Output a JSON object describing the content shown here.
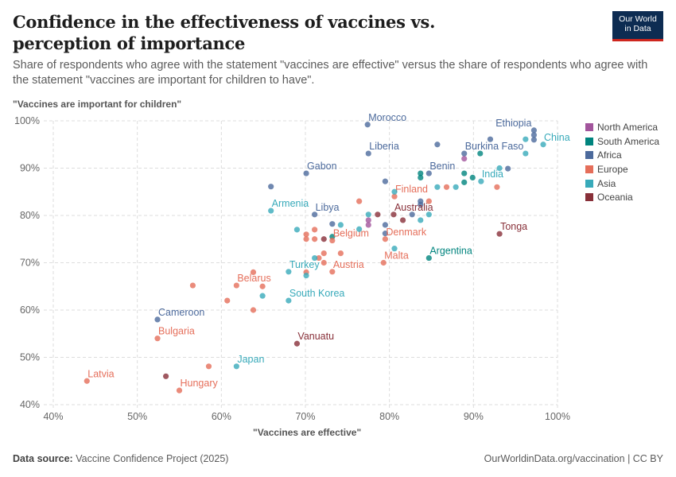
{
  "header": {
    "title": "Confidence in the effectiveness of vaccines vs. perception of importance",
    "subtitle": "Share of respondents who agree with the statement \"vaccines are effective\" versus the share of respondents who agree with the statement \"vaccines are important for children to have\".",
    "logo_line1": "Our World",
    "logo_line2": "in Data"
  },
  "footer": {
    "source_label": "Data source:",
    "source": "Vaccine Confidence Project (2025)",
    "link": "OurWorldinData.org/vaccination | CC BY"
  },
  "chart_data": {
    "type": "scatter",
    "xlabel": "\"Vaccines are effective\"",
    "ylabel": "\"Vaccines are important for children\"",
    "xlim": [
      40,
      100
    ],
    "ylim": [
      40,
      100
    ],
    "xticks": [
      "40%",
      "50%",
      "60%",
      "70%",
      "80%",
      "90%",
      "100%"
    ],
    "yticks": [
      "40%",
      "50%",
      "60%",
      "70%",
      "80%",
      "90%",
      "100%"
    ],
    "grid": true,
    "legend_position": "right",
    "series": [
      {
        "name": "North America",
        "color": "#a2559c",
        "points": [
          {
            "x": 88.9,
            "y": 92
          },
          {
            "x": 77.5,
            "y": 79
          },
          {
            "x": 77.5,
            "y": 78
          }
        ]
      },
      {
        "name": "South America",
        "color": "#00847e",
        "points": [
          {
            "x": 84.7,
            "y": 71,
            "label": "Argentina"
          },
          {
            "x": 83.7,
            "y": 88.9
          },
          {
            "x": 83.7,
            "y": 88
          },
          {
            "x": 90.8,
            "y": 93.1
          },
          {
            "x": 88.9,
            "y": 88.9
          },
          {
            "x": 88.9,
            "y": 87
          },
          {
            "x": 89.9,
            "y": 88
          },
          {
            "x": 73.2,
            "y": 75.5
          }
        ]
      },
      {
        "name": "Africa",
        "color": "#4c6a9c",
        "points": [
          {
            "x": 77.4,
            "y": 99.2,
            "label": "Morocco"
          },
          {
            "x": 97.2,
            "y": 98,
            "label": "Ethiopia"
          },
          {
            "x": 77.5,
            "y": 93.1,
            "label": "Liberia"
          },
          {
            "x": 88.9,
            "y": 93.1,
            "label": "Burkina Faso"
          },
          {
            "x": 70.1,
            "y": 88.9,
            "label": "Gabon"
          },
          {
            "x": 84.7,
            "y": 88.9,
            "label": "Benin"
          },
          {
            "x": 71.1,
            "y": 80.2,
            "label": "Libya"
          },
          {
            "x": 52.4,
            "y": 58,
            "label": "Cameroon"
          },
          {
            "x": 65.9,
            "y": 86.1
          },
          {
            "x": 85.7,
            "y": 95
          },
          {
            "x": 92,
            "y": 96.1
          },
          {
            "x": 97.2,
            "y": 97
          },
          {
            "x": 97.2,
            "y": 96
          },
          {
            "x": 94.1,
            "y": 89.9
          },
          {
            "x": 79.5,
            "y": 87.2
          },
          {
            "x": 83.7,
            "y": 83
          },
          {
            "x": 83.7,
            "y": 82.3
          },
          {
            "x": 73.2,
            "y": 78.2
          },
          {
            "x": 82.7,
            "y": 80.2
          },
          {
            "x": 79.5,
            "y": 78
          },
          {
            "x": 79.5,
            "y": 76.2
          }
        ]
      },
      {
        "name": "Europe",
        "color": "#e56e5a",
        "points": [
          {
            "x": 80.6,
            "y": 84,
            "label": "Finland"
          },
          {
            "x": 73.2,
            "y": 74.7,
            "label": "Belgium"
          },
          {
            "x": 79.5,
            "y": 75,
            "label": "Denmark"
          },
          {
            "x": 79.3,
            "y": 70,
            "label": "Malta"
          },
          {
            "x": 73.2,
            "y": 68.1,
            "label": "Austria"
          },
          {
            "x": 61.8,
            "y": 65.2,
            "label": "Belarus"
          },
          {
            "x": 52.4,
            "y": 54,
            "label": "Bulgaria"
          },
          {
            "x": 44,
            "y": 45,
            "label": "Latvia"
          },
          {
            "x": 55,
            "y": 43,
            "label": "Hungary"
          },
          {
            "x": 86.8,
            "y": 86
          },
          {
            "x": 92.8,
            "y": 86
          },
          {
            "x": 84.7,
            "y": 83
          },
          {
            "x": 76.4,
            "y": 83
          },
          {
            "x": 70.1,
            "y": 76
          },
          {
            "x": 70.1,
            "y": 75
          },
          {
            "x": 71.1,
            "y": 77
          },
          {
            "x": 71.1,
            "y": 75
          },
          {
            "x": 72.2,
            "y": 72
          },
          {
            "x": 74.2,
            "y": 72
          },
          {
            "x": 71.6,
            "y": 71
          },
          {
            "x": 72.2,
            "y": 70
          },
          {
            "x": 63.8,
            "y": 68
          },
          {
            "x": 64.9,
            "y": 65
          },
          {
            "x": 70.1,
            "y": 68
          },
          {
            "x": 56.6,
            "y": 65.2
          },
          {
            "x": 60.7,
            "y": 62
          },
          {
            "x": 63.8,
            "y": 60
          },
          {
            "x": 58.5,
            "y": 48.1
          }
        ]
      },
      {
        "name": "Asia",
        "color": "#38aaba",
        "points": [
          {
            "x": 98.3,
            "y": 95,
            "label": "China"
          },
          {
            "x": 90.9,
            "y": 87.2,
            "label": "India"
          },
          {
            "x": 65.9,
            "y": 81,
            "label": "Armenia"
          },
          {
            "x": 68,
            "y": 68.1,
            "label": "Turkey"
          },
          {
            "x": 68,
            "y": 62,
            "label": "South Korea"
          },
          {
            "x": 61.8,
            "y": 48.1,
            "label": "Japan"
          },
          {
            "x": 93.1,
            "y": 90
          },
          {
            "x": 96.2,
            "y": 96.1
          },
          {
            "x": 96.2,
            "y": 93.1
          },
          {
            "x": 85.7,
            "y": 86
          },
          {
            "x": 87.9,
            "y": 86
          },
          {
            "x": 77.5,
            "y": 80.2
          },
          {
            "x": 83.7,
            "y": 79
          },
          {
            "x": 84.7,
            "y": 80.2
          },
          {
            "x": 74.2,
            "y": 78
          },
          {
            "x": 76.4,
            "y": 77.1
          },
          {
            "x": 69,
            "y": 77
          },
          {
            "x": 64.9,
            "y": 63
          },
          {
            "x": 70.1,
            "y": 67.3
          },
          {
            "x": 80.6,
            "y": 73
          },
          {
            "x": 71.1,
            "y": 71
          },
          {
            "x": 80.6,
            "y": 85
          }
        ]
      },
      {
        "name": "Oceania",
        "color": "#883039",
        "points": [
          {
            "x": 80.5,
            "y": 80.2,
            "label": "Australia"
          },
          {
            "x": 93.1,
            "y": 76.1,
            "label": "Tonga"
          },
          {
            "x": 69,
            "y": 52.9,
            "label": "Vanuatu"
          },
          {
            "x": 78.6,
            "y": 80.2
          },
          {
            "x": 72.2,
            "y": 75
          },
          {
            "x": 81.6,
            "y": 79
          },
          {
            "x": 53.4,
            "y": 46
          }
        ]
      }
    ]
  }
}
